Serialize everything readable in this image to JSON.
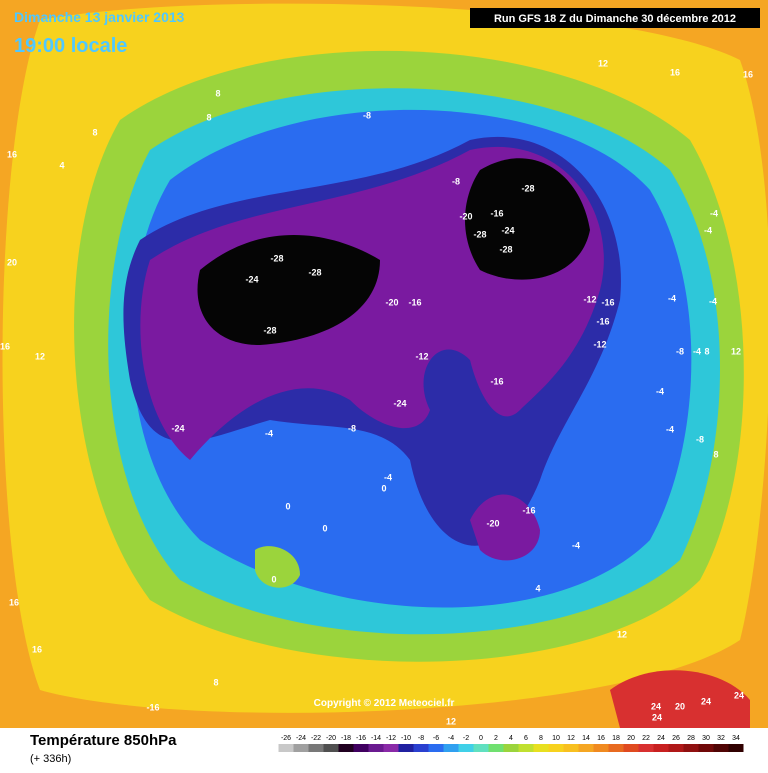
{
  "header": {
    "date": "Dimanche 13 janvier 2013",
    "time": "19:00 locale",
    "run": "Run GFS 18 Z du Dimanche 30 décembre 2012"
  },
  "footer": {
    "title": "Température 850hPa",
    "lead": "(+ 336h)",
    "copyright": "Copyright © 2012 Meteociel.fr"
  },
  "legend": {
    "ticks": [
      -26,
      -24,
      -22,
      -20,
      -18,
      -16,
      -14,
      -12,
      -10,
      -8,
      -6,
      -4,
      -2,
      0,
      2,
      4,
      6,
      8,
      10,
      12,
      14,
      16,
      18,
      20,
      22,
      24,
      26,
      28,
      30,
      32,
      34
    ]
  },
  "map": {
    "labels": [
      "8",
      "8",
      "8",
      "16",
      "4",
      "20",
      "16",
      "12",
      "-8",
      "-8",
      "-28",
      "-20",
      "-16",
      "-24",
      "-28",
      "-28",
      "-28",
      "-28",
      "-24",
      "-28",
      "-20",
      "-16",
      "-12",
      "-16",
      "-16",
      "-12",
      "-12",
      "-16",
      "-24",
      "-24",
      "-8",
      "-4",
      "-4",
      "0",
      "0",
      "0",
      "-16",
      "-20",
      "0",
      "-4",
      "4",
      "16",
      "16",
      "8",
      "-16",
      "12",
      "12",
      "24",
      "24",
      "20",
      "24",
      "24",
      "16",
      "12",
      "16",
      "-4",
      "-4",
      "-4",
      "-4",
      "12",
      "-8",
      "-4",
      "8",
      "-4",
      "-4",
      "-8",
      "8"
    ]
  }
}
